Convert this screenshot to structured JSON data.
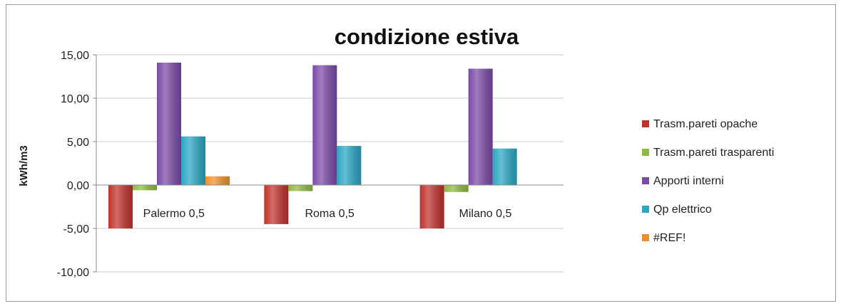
{
  "chart_data": {
    "type": "bar",
    "title": "condizione estiva",
    "ylabel": "kWh/m3",
    "xlabel": "",
    "ylim": [
      -10,
      15
    ],
    "yticks": [
      15,
      10,
      5,
      0,
      -5,
      -10
    ],
    "ytick_labels": [
      "15,00",
      "10,00",
      "5,00",
      "0,00",
      "-5,00",
      "-10,00"
    ],
    "categories": [
      "Palermo 0,5",
      "Roma 0,5",
      "Milano 0,5"
    ],
    "series": [
      {
        "name": "Trasm.pareti opache",
        "values": [
          -5.0,
          -4.5,
          -5.0
        ],
        "color": "#c0322c"
      },
      {
        "name": "Trasm.pareti trasparenti",
        "values": [
          -0.6,
          -0.7,
          -0.8
        ],
        "color": "#8fb93f"
      },
      {
        "name": "Apporti interni",
        "values": [
          14.1,
          13.8,
          13.4
        ],
        "color": "#7a4aa8"
      },
      {
        "name": "Qp elettrico",
        "values": [
          5.6,
          4.5,
          4.2
        ],
        "color": "#2aa7c4"
      },
      {
        "name": "#REF!",
        "values": [
          1.0,
          0,
          0
        ],
        "color": "#f0902a"
      }
    ],
    "grid": true,
    "legend_position": "right"
  }
}
